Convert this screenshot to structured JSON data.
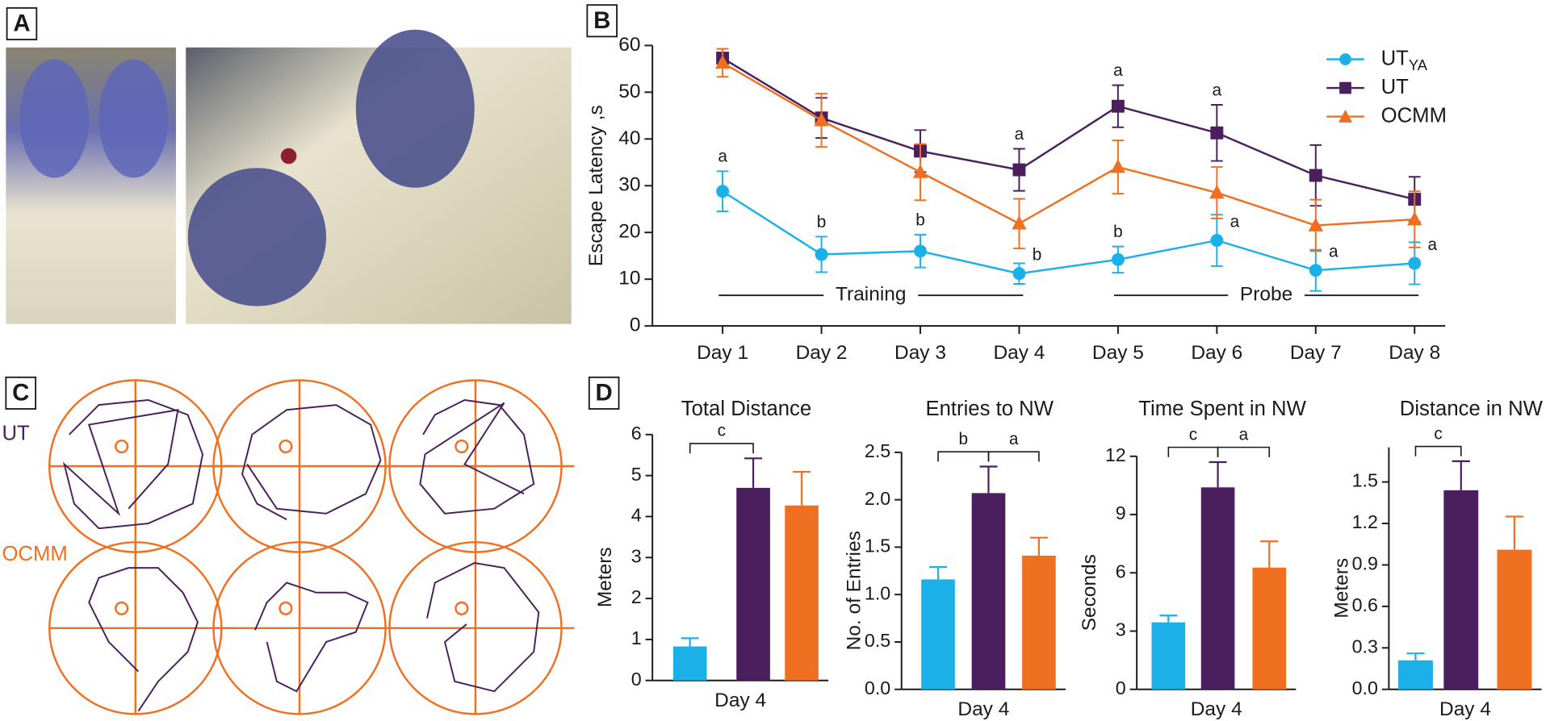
{
  "panels": {
    "labels": [
      "A",
      "B",
      "C",
      "D"
    ],
    "c_rows": [
      "UT",
      "OCMM"
    ]
  },
  "chart_data": [
    {
      "type": "line",
      "ylabel": "Escape Latency ,s",
      "categories": [
        "Day 1",
        "Day 2",
        "Day 3",
        "Day 4",
        "Day 5",
        "Day 6",
        "Day 7",
        "Day 8"
      ],
      "ylim": [
        0,
        60
      ],
      "yticks": [
        0,
        10,
        20,
        30,
        40,
        50,
        60
      ],
      "series": [
        {
          "name": "UT",
          "subscript": "YA",
          "color": "#1cb0e8",
          "marker": "circle",
          "values": [
            28.8,
            15.3,
            16.0,
            11.2,
            14.2,
            18.3,
            11.9,
            13.4
          ],
          "errors": [
            4.3,
            3.8,
            3.5,
            2.2,
            2.8,
            5.5,
            4.4,
            4.5
          ],
          "annotations": [
            {
              "x": "Day 1",
              "text": "a"
            },
            {
              "x": "Day 2",
              "text": "b"
            },
            {
              "x": "Day 3",
              "text": "b"
            },
            {
              "x": "Day 4",
              "text": "b"
            },
            {
              "x": "Day 5",
              "text": "b"
            },
            {
              "x": "Day 6",
              "text": "a"
            },
            {
              "x": "Day 7",
              "text": "a"
            },
            {
              "x": "Day 8",
              "text": "a"
            }
          ]
        },
        {
          "name": "UT",
          "color": "#4b1f5e",
          "marker": "square",
          "values": [
            57.3,
            44.5,
            37.4,
            33.4,
            47.0,
            41.3,
            32.2,
            27.1
          ],
          "errors": [
            2.0,
            4.3,
            4.5,
            4.5,
            4.5,
            6.0,
            6.5,
            4.8
          ],
          "annotations": [
            {
              "x": "Day 4",
              "text": "a"
            },
            {
              "x": "Day 5",
              "text": "a"
            },
            {
              "x": "Day 6",
              "text": "a"
            }
          ]
        },
        {
          "name": "OCMM",
          "color": "#f07022",
          "marker": "triangle",
          "values": [
            56.3,
            44.0,
            32.9,
            21.9,
            34.0,
            28.5,
            21.5,
            22.8
          ],
          "errors": [
            3.0,
            5.7,
            6.0,
            5.3,
            5.7,
            5.5,
            5.5,
            6.0
          ],
          "annotations": []
        }
      ],
      "phases": [
        {
          "label": "Training",
          "from": "Day 1",
          "to": "Day 4"
        },
        {
          "label": "Probe",
          "from": "Day 5",
          "to": "Day 8"
        }
      ],
      "legend": "upper right"
    },
    {
      "type": "bar",
      "title": "Total Distance",
      "ylabel": "Meters",
      "xlabel": "Day 4",
      "categories": [
        null,
        null,
        null
      ],
      "colors": [
        "#1cb0e8",
        "#4b1f5e",
        "#f07022"
      ],
      "values": [
        0.83,
        4.7,
        4.27
      ],
      "errors": [
        0.2,
        0.72,
        0.82
      ],
      "ylim": [
        0,
        6
      ],
      "yticks": [
        0,
        1,
        2,
        3,
        4,
        5,
        6
      ],
      "brackets": [
        {
          "text": "c"
        }
      ]
    },
    {
      "type": "bar",
      "title": "Entries to NW",
      "ylabel": "No. of Entries",
      "xlabel": "Day 4",
      "categories": [
        null,
        null,
        null
      ],
      "colors": [
        "#1cb0e8",
        "#4b1f5e",
        "#f07022"
      ],
      "values": [
        1.16,
        2.07,
        1.41
      ],
      "errors": [
        0.13,
        0.28,
        0.19
      ],
      "ylim": [
        0,
        2.5
      ],
      "yticks": [
        {
          "value": 0,
          "label": "0.0"
        },
        0.5,
        {
          "value": 1,
          "label": "1.0"
        },
        1.5,
        {
          "value": 2,
          "label": "2.0"
        },
        2.5
      ],
      "brackets": [
        {
          "text": "b"
        },
        {
          "text": "a"
        }
      ]
    },
    {
      "type": "bar",
      "title": "Time Spent in NW",
      "ylabel": "Seconds",
      "xlabel": "Day 4",
      "categories": [
        null,
        null,
        null
      ],
      "colors": [
        "#1cb0e8",
        "#4b1f5e",
        "#f07022"
      ],
      "values": [
        3.45,
        10.4,
        6.27
      ],
      "errors": [
        0.35,
        1.3,
        1.35
      ],
      "ylim": [
        0,
        12
      ],
      "yticks": [
        0,
        3,
        6,
        9,
        12
      ],
      "brackets": [
        {
          "text": "c"
        },
        {
          "text": "a"
        }
      ]
    },
    {
      "type": "bar",
      "title": "Distance in NW",
      "ylabel": "Meters",
      "xlabel": "Day 4",
      "categories": [
        null,
        null,
        null
      ],
      "colors": [
        "#1cb0e8",
        "#4b1f5e",
        "#f07022"
      ],
      "values": [
        0.21,
        1.44,
        1.01
      ],
      "errors": [
        0.05,
        0.21,
        0.24
      ],
      "ylim": [
        0,
        1.75
      ],
      "yticks": [
        {
          "value": 0,
          "label": "0.0"
        },
        0.3,
        0.6,
        0.9,
        1.2,
        1.5
      ],
      "brackets": [
        {
          "text": "c"
        }
      ]
    }
  ]
}
